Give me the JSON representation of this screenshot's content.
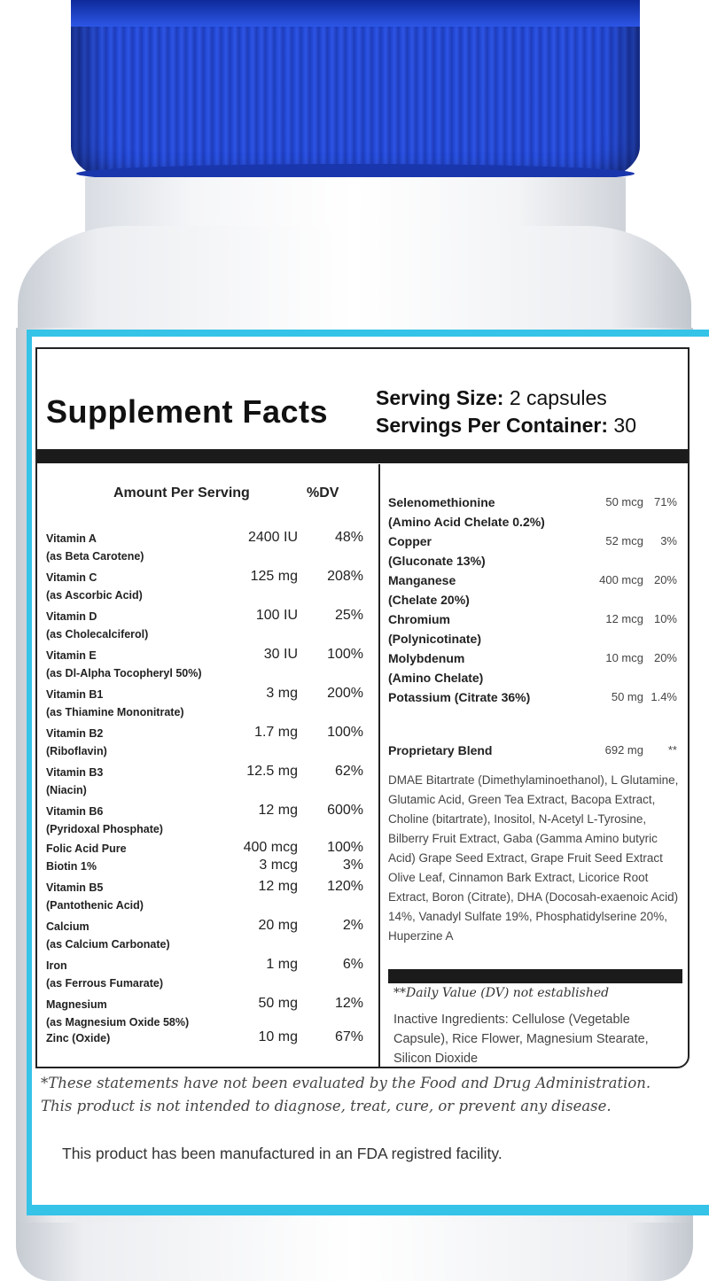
{
  "title": "Supplement Facts",
  "serving": {
    "size_label": "Serving Size:",
    "size_value": " 2 capsules",
    "per_container_label": "Servings Per Container:",
    "per_container_value": " 30"
  },
  "left": {
    "header_amount": "Amount Per Serving",
    "header_dv": "%DV",
    "rows": [
      {
        "name": "Vitamin A",
        "sub": "(as Beta Carotene)",
        "amount": "2400 IU",
        "dv": "48%"
      },
      {
        "name": "Vitamin C",
        "sub": "(as Ascorbic Acid)",
        "amount": "125 mg",
        "dv": "208%"
      },
      {
        "name": "Vitamin D",
        "sub": "(as Cholecalciferol)",
        "amount": "100 IU",
        "dv": "25%"
      },
      {
        "name": "Vitamin E",
        "sub": "(as Dl-Alpha Tocopheryl 50%)",
        "amount": "30 IU",
        "dv": "100%"
      },
      {
        "name": "Vitamin B1",
        "sub": "(as Thiamine Mononitrate)",
        "amount": "3 mg",
        "dv": "200%"
      },
      {
        "name": "Vitamin B2",
        "sub": "(Riboflavin)",
        "amount": "1.7 mg",
        "dv": "100%"
      },
      {
        "name": "Vitamin B3",
        "sub": "(Niacin)",
        "amount": "12.5 mg",
        "dv": "62%"
      },
      {
        "name": "Vitamin B6",
        "sub": "(Pyridoxal Phosphate)",
        "amount": "12 mg",
        "dv": "600%"
      },
      {
        "name": "Folic Acid Pure",
        "sub": "",
        "amount": "400 mcg",
        "dv": "100%"
      },
      {
        "name": "Biotin 1%",
        "sub": "",
        "amount": "3 mcg",
        "dv": "3%"
      },
      {
        "name": "Vitamin B5",
        "sub": "(Pantothenic Acid)",
        "amount": "12 mg",
        "dv": "120%"
      },
      {
        "name": "Calcium",
        "sub": "(as Calcium Carbonate)",
        "amount": "20 mg",
        "dv": "2%"
      },
      {
        "name": "Iron",
        "sub": "(as Ferrous Fumarate)",
        "amount": "1 mg",
        "dv": "6%"
      },
      {
        "name": "Magnesium",
        "sub": "(as Magnesium Oxide 58%)",
        "amount": "50 mg",
        "dv": "12%"
      },
      {
        "name": "Zinc (Oxide)",
        "sub": "",
        "amount": "10 mg",
        "dv": "67%"
      }
    ]
  },
  "right": {
    "rows": [
      {
        "name": "Selenomethionine",
        "sub": "(Amino Acid Chelate 0.2%)",
        "amount": "50 mcg",
        "dv": "71%"
      },
      {
        "name": "Copper",
        "sub": "(Gluconate 13%)",
        "amount": "52 mcg",
        "dv": "3%"
      },
      {
        "name": "Manganese",
        "sub": "(Chelate 20%)",
        "amount": "400 mcg",
        "dv": "20%"
      },
      {
        "name": "Chromium",
        "sub": "(Polynicotinate)",
        "amount": "12 mcg",
        "dv": "10%"
      },
      {
        "name": "Molybdenum",
        "sub": "(Amino Chelate)",
        "amount": "10 mcg",
        "dv": "20%"
      },
      {
        "name": "Potassium (Citrate 36%)",
        "sub": "",
        "amount": "50 mg",
        "dv": "1.4%"
      }
    ],
    "blend_name": "Proprietary Blend",
    "blend_amount": "692 mg",
    "blend_dv": "**",
    "blend_ingredients": "DMAE Bitartrate (Dimethylaminoethanol), L Glutamine, Glutamic Acid, Green Tea Extract, Bacopa Extract, Choline (bitartrate), Inositol, N-Acetyl L-Tyrosine, Bilberry Fruit Extract, Gaba (Gamma Amino butyric Acid) Grape Seed Extract, Grape Fruit Seed Extract Olive Leaf, Cinnamon Bark Extract, Licorice Root Extract, Boron (Citrate), DHA (Docosah-exaenoic Acid) 14%, Vanadyl Sulfate 19%, Phosphatidylserine 20%, Huperzine A",
    "dv_note": "**Daily Value (DV) not established",
    "inactive": "Inactive Ingredients: Cellulose (Vegetable Capsule), Rice Flower, Magnesium Stearate, Silicon Dioxide"
  },
  "disclaimer_line1": "*These statements have not been evaluated by the Food and Drug Administration.",
  "disclaimer_line2": "This product is not intended to diagnose, treat, cure, or prevent any disease.",
  "fda_note": "This product has been manufactured in an FDA registred facility.",
  "colors": {
    "cap": "#2a4fd9",
    "label_border": "#35c3e8",
    "text": "#222222"
  }
}
